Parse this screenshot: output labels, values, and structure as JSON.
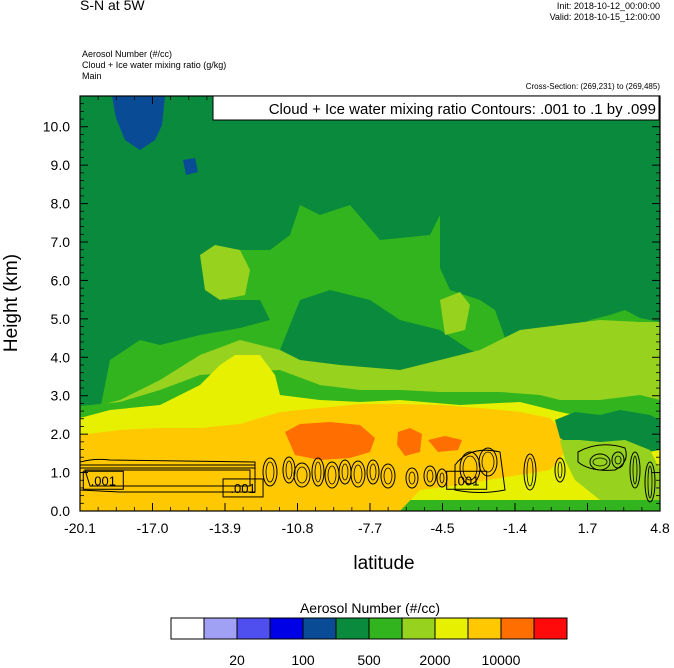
{
  "header": {
    "title": "S-N at 5W",
    "init": "Init: 2018-10-12_00:00:00",
    "valid": "Valid: 2018-10-15_12:00:00",
    "var1": "Aerosol Number   (#/cc)",
    "var2": "Cloud + Ice water mixing ratio   (g/kg)",
    "var3": "Main",
    "cross_section": "Cross-Section: (269,231) to (269,485)",
    "contour_info": "Cloud + Ice water mixing ratio Contours: .001 to .1 by .099"
  },
  "chart_data": {
    "type": "heatmap",
    "xlabel": "latitude",
    "ylabel": "Height (km)",
    "xlim": [
      -20.1,
      4.8
    ],
    "ylim": [
      0.0,
      10.8
    ],
    "xticks": [
      "-20.1",
      "-17.0",
      "-13.9",
      "-10.8",
      "-7.7",
      "-4.5",
      "-1.4",
      "1.7",
      "4.8"
    ],
    "yticks": [
      "0.0",
      "1.0",
      "2.0",
      "3.0",
      "4.0",
      "5.0",
      "6.0",
      "7.0",
      "8.0",
      "9.0",
      "10.0"
    ],
    "colorbar": {
      "title": "Aerosol Number  (#/cc)",
      "colors": [
        "#ffffff",
        "#a0a0f5",
        "#4f4ff0",
        "#0000e6",
        "#0a4b96",
        "#0a8a3c",
        "#32b41e",
        "#96d21e",
        "#e6f000",
        "#ffc800",
        "#ff6e00",
        "#ff0a0a"
      ],
      "labels": [
        "20",
        "100",
        "500",
        "2000",
        "10000"
      ]
    },
    "contour_labels": [
      {
        "text": ".001",
        "lat": -19.1,
        "height": 0.8
      },
      {
        "text": ".001",
        "lat": -13.1,
        "height": 0.6
      },
      {
        "text": ".001",
        "lat": -3.5,
        "height": 0.8
      }
    ],
    "layers": [
      {
        "name": "green-base",
        "color": "#32b41e",
        "from_height": 0.0,
        "to_height": 10.8
      },
      {
        "name": "dark-green-upper",
        "color": "#0a8a3c",
        "from_height": 5.0,
        "to_height": 10.8
      },
      {
        "name": "dark-green-mid",
        "color": "#0a8a3c",
        "from_height": 2.8,
        "to_height": 5.0
      },
      {
        "name": "lightgreen-band",
        "color": "#96d21e",
        "from_height": 2.2,
        "to_height": 3.4
      },
      {
        "name": "yellow-band",
        "color": "#e6f000",
        "from_height": 0.3,
        "to_height": 2.7
      },
      {
        "name": "orange-band",
        "color": "#ffc800",
        "from_height": 0.0,
        "to_height": 2.3
      },
      {
        "name": "red-orange-core",
        "color": "#ff6e00",
        "from_height": 1.5,
        "to_height": 2.3
      }
    ]
  }
}
